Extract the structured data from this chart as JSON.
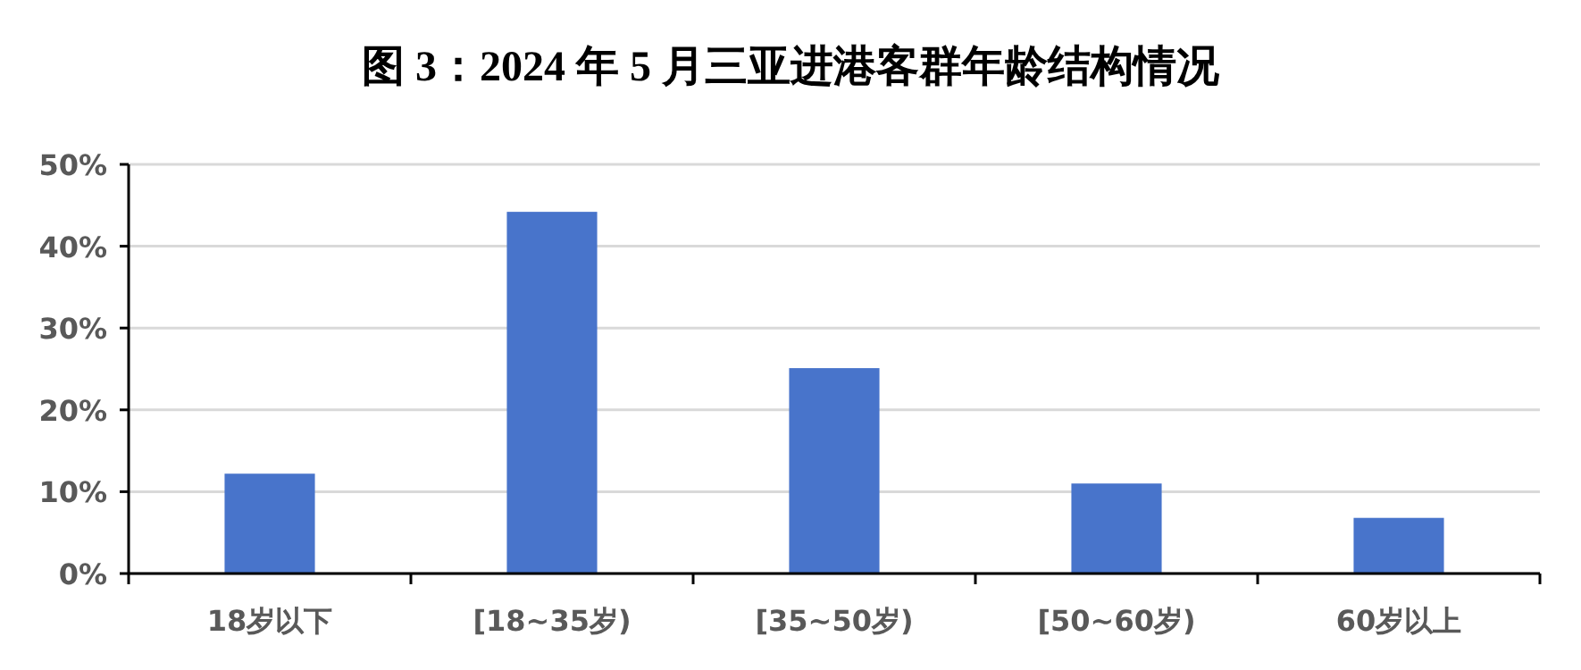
{
  "chart_data": {
    "type": "bar",
    "title": "图 3：2024 年 5 月三亚进港客群年龄结构情况",
    "categories": [
      "18岁以下",
      "[18~35岁)",
      "[35~50岁)",
      "[50~60岁)",
      "60岁以上"
    ],
    "values": [
      12.2,
      44.2,
      25.1,
      11.0,
      6.8
    ],
    "color": "#4874cb",
    "ylim": [
      0,
      50
    ],
    "yticks": [
      {
        "value": 0,
        "label": "0%"
      },
      {
        "value": 10,
        "label": "10%"
      },
      {
        "value": 20,
        "label": "20%"
      },
      {
        "value": 30,
        "label": "30%"
      },
      {
        "value": 40,
        "label": "40%"
      },
      {
        "value": 50,
        "label": "50%"
      }
    ],
    "grid": "y"
  }
}
